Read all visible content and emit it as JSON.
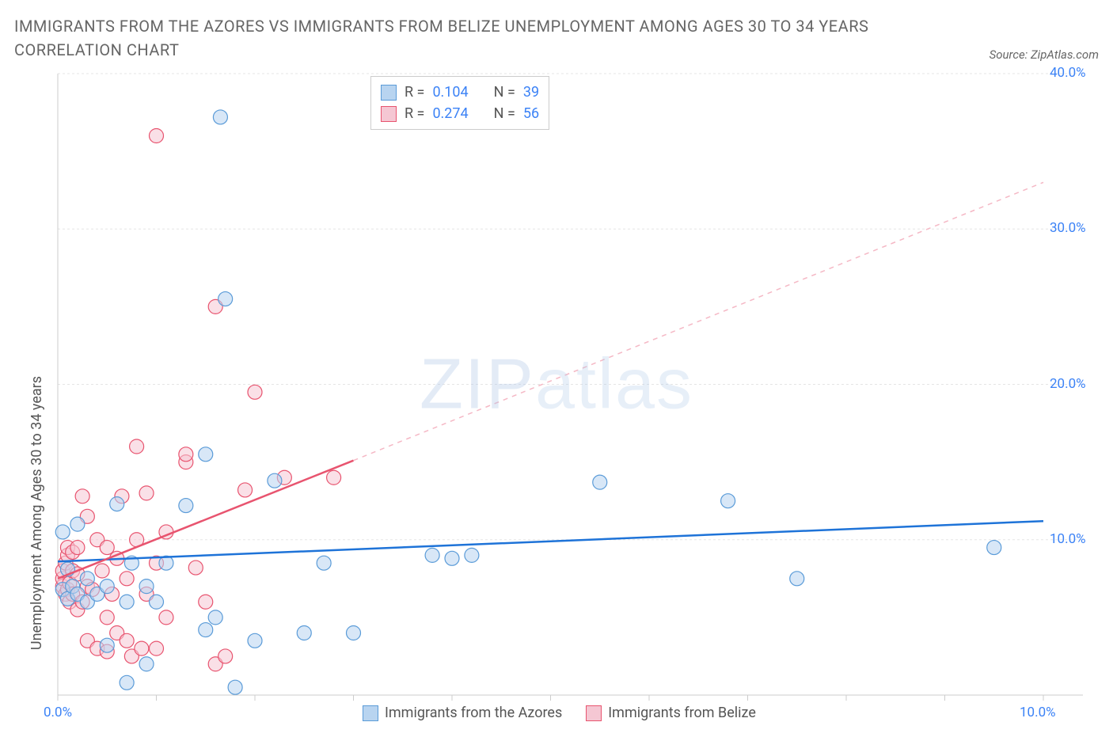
{
  "title": "IMMIGRANTS FROM THE AZORES VS IMMIGRANTS FROM BELIZE UNEMPLOYMENT AMONG AGES 30 TO 34 YEARS CORRELATION CHART",
  "source": "Source: ZipAtlas.com",
  "watermark_bold": "ZIP",
  "watermark_thin": "atlas",
  "ylabel": "Unemployment Among Ages 30 to 34 years",
  "chart": {
    "type": "scatter",
    "xlim": [
      0,
      10
    ],
    "ylim": [
      0,
      40
    ],
    "xtick_positions": [
      0,
      1,
      2,
      3,
      4,
      5,
      6,
      7,
      8,
      9,
      10
    ],
    "xtick_labels": {
      "0": "0.0%",
      "10": "10.0%"
    },
    "ytick_positions": [
      10,
      20,
      30,
      40
    ],
    "ytick_labels": {
      "10": "10.0%",
      "20": "20.0%",
      "30": "30.0%",
      "40": "40.0%"
    },
    "grid_color": "#e5e5e5",
    "axis_color": "#cccccc",
    "background_color": "#ffffff",
    "marker_radius": 9,
    "marker_opacity": 0.55,
    "series": [
      {
        "name": "Immigrants from the Azores",
        "color_fill": "#b8d4f0",
        "color_stroke": "#5a9bd8",
        "r_value": "0.104",
        "n_value": "39",
        "trend": {
          "x1": 0,
          "y1": 8.6,
          "x2": 10,
          "y2": 11.2,
          "color": "#1e73d8",
          "width": 2.5,
          "dash": "none"
        },
        "points": [
          [
            0.05,
            6.8
          ],
          [
            0.05,
            10.5
          ],
          [
            0.1,
            6.2
          ],
          [
            0.1,
            8.1
          ],
          [
            0.15,
            7.0
          ],
          [
            0.2,
            6.5
          ],
          [
            0.2,
            11.0
          ],
          [
            0.3,
            6.0
          ],
          [
            0.3,
            7.5
          ],
          [
            0.4,
            6.5
          ],
          [
            0.5,
            3.2
          ],
          [
            0.5,
            7.0
          ],
          [
            0.6,
            12.3
          ],
          [
            0.7,
            6.0
          ],
          [
            0.7,
            0.8
          ],
          [
            0.75,
            8.5
          ],
          [
            0.9,
            2.0
          ],
          [
            0.9,
            7.0
          ],
          [
            1.0,
            6.0
          ],
          [
            1.1,
            8.5
          ],
          [
            1.3,
            12.2
          ],
          [
            1.5,
            15.5
          ],
          [
            1.5,
            4.2
          ],
          [
            1.6,
            5.0
          ],
          [
            1.65,
            37.2
          ],
          [
            1.7,
            25.5
          ],
          [
            1.8,
            0.5
          ],
          [
            2.0,
            3.5
          ],
          [
            2.2,
            13.8
          ],
          [
            2.5,
            4.0
          ],
          [
            2.7,
            8.5
          ],
          [
            3.0,
            4.0
          ],
          [
            3.8,
            9.0
          ],
          [
            4.0,
            8.8
          ],
          [
            4.2,
            9.0
          ],
          [
            5.5,
            13.7
          ],
          [
            6.8,
            12.5
          ],
          [
            7.5,
            7.5
          ],
          [
            9.5,
            9.5
          ]
        ]
      },
      {
        "name": "Immigrants from Belize",
        "color_fill": "#f5c7d3",
        "color_stroke": "#e8546f",
        "r_value": "0.274",
        "n_value": "56",
        "trend_solid": {
          "x1": 0,
          "y1": 7.5,
          "x2": 3.0,
          "y2": 15.1,
          "color": "#e8546f",
          "width": 2.5
        },
        "trend_dash": {
          "x1": 3.0,
          "y1": 15.1,
          "x2": 10,
          "y2": 33.0,
          "color": "#f5b8c5",
          "width": 1.5
        },
        "points": [
          [
            0.05,
            7.0
          ],
          [
            0.05,
            7.5
          ],
          [
            0.05,
            8.0
          ],
          [
            0.08,
            6.5
          ],
          [
            0.08,
            8.5
          ],
          [
            0.1,
            6.8
          ],
          [
            0.1,
            9.0
          ],
          [
            0.1,
            9.5
          ],
          [
            0.12,
            6.0
          ],
          [
            0.12,
            7.2
          ],
          [
            0.15,
            6.5
          ],
          [
            0.15,
            8.0
          ],
          [
            0.15,
            9.2
          ],
          [
            0.2,
            5.5
          ],
          [
            0.2,
            7.8
          ],
          [
            0.2,
            9.5
          ],
          [
            0.25,
            6.0
          ],
          [
            0.25,
            12.8
          ],
          [
            0.3,
            3.5
          ],
          [
            0.3,
            7.0
          ],
          [
            0.3,
            11.5
          ],
          [
            0.35,
            6.8
          ],
          [
            0.4,
            3.0
          ],
          [
            0.4,
            10.0
          ],
          [
            0.45,
            8.0
          ],
          [
            0.5,
            2.8
          ],
          [
            0.5,
            5.0
          ],
          [
            0.5,
            9.5
          ],
          [
            0.55,
            6.5
          ],
          [
            0.6,
            4.0
          ],
          [
            0.6,
            8.8
          ],
          [
            0.65,
            12.8
          ],
          [
            0.7,
            3.5
          ],
          [
            0.7,
            7.5
          ],
          [
            0.75,
            2.5
          ],
          [
            0.8,
            10.0
          ],
          [
            0.8,
            16.0
          ],
          [
            0.85,
            3.0
          ],
          [
            0.9,
            6.5
          ],
          [
            0.9,
            13.0
          ],
          [
            1.0,
            3.0
          ],
          [
            1.0,
            8.5
          ],
          [
            1.0,
            36.0
          ],
          [
            1.1,
            5.0
          ],
          [
            1.1,
            10.5
          ],
          [
            1.3,
            15.0
          ],
          [
            1.3,
            15.5
          ],
          [
            1.4,
            8.2
          ],
          [
            1.5,
            6.0
          ],
          [
            1.6,
            25.0
          ],
          [
            1.6,
            2.0
          ],
          [
            1.7,
            2.5
          ],
          [
            1.9,
            13.2
          ],
          [
            2.0,
            19.5
          ],
          [
            2.3,
            14.0
          ],
          [
            2.8,
            14.0
          ]
        ]
      }
    ]
  },
  "legend": {
    "series1_label": "Immigrants from the Azores",
    "series2_label": "Immigrants from Belize"
  }
}
